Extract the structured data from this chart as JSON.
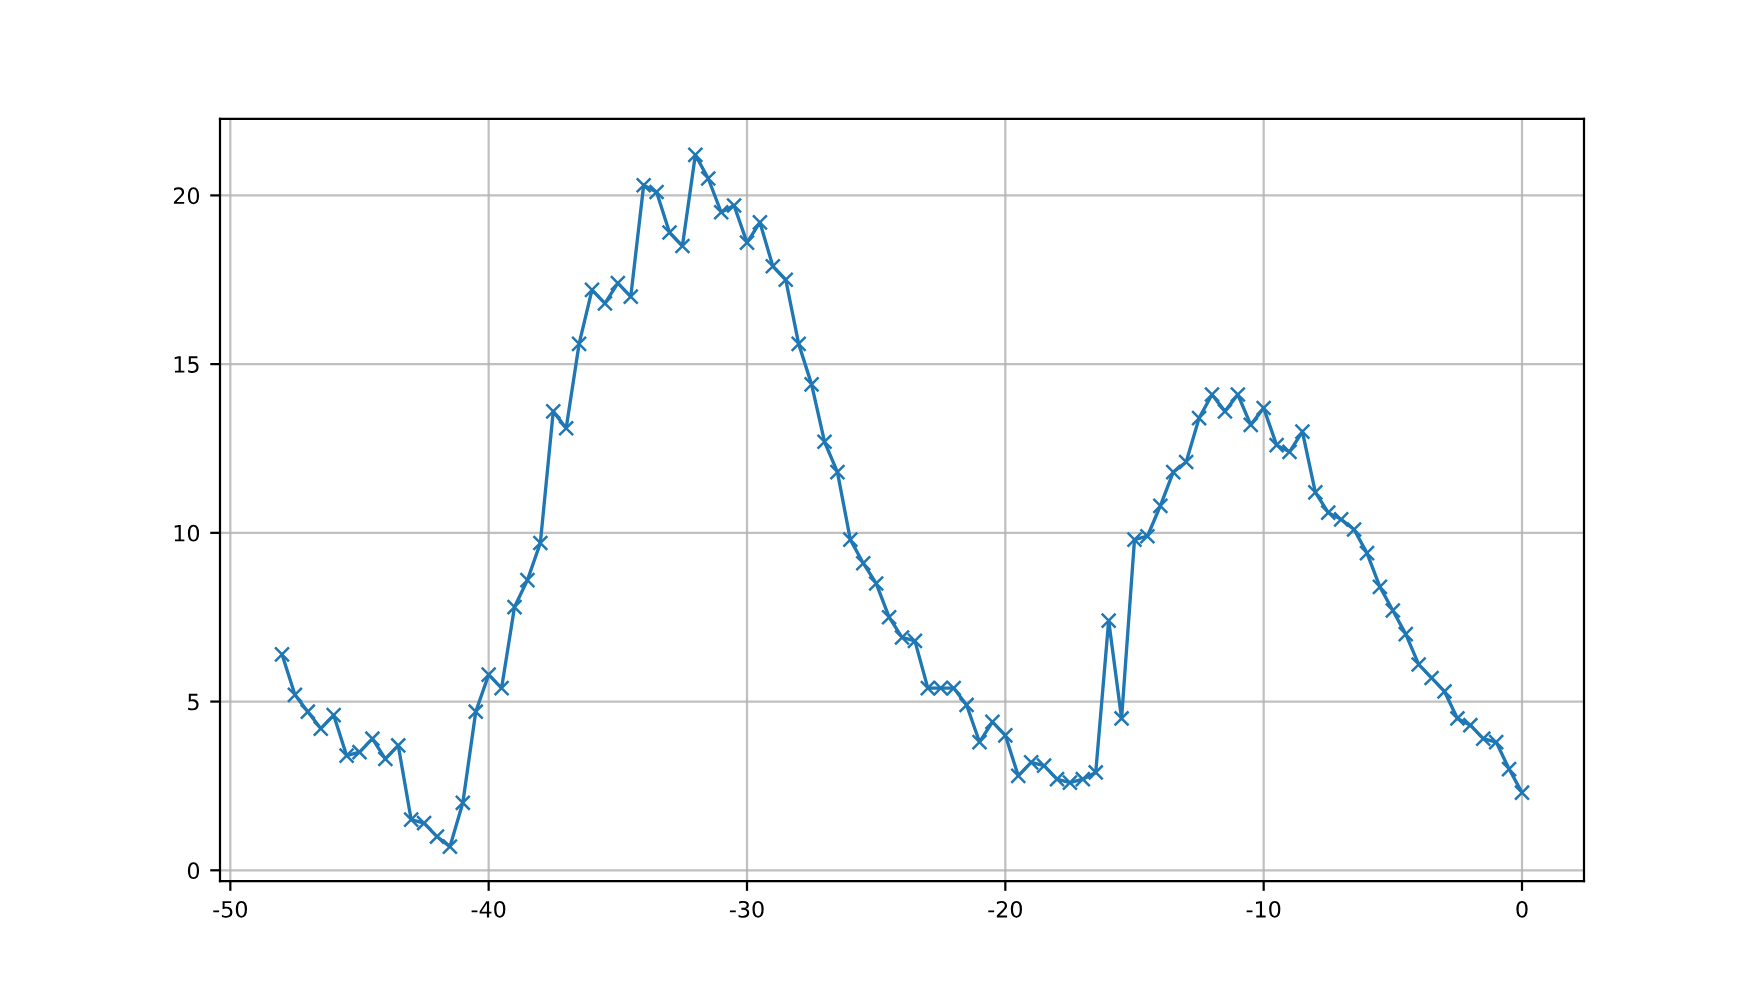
{
  "chart_data": {
    "type": "line",
    "x": [
      -48.0,
      -47.5,
      -47.0,
      -46.5,
      -46.0,
      -45.5,
      -45.0,
      -44.5,
      -44.0,
      -43.5,
      -43.0,
      -42.5,
      -42.0,
      -41.5,
      -41.0,
      -40.5,
      -40.0,
      -39.5,
      -39.0,
      -38.5,
      -38.0,
      -37.5,
      -37.0,
      -36.5,
      -36.0,
      -35.5,
      -35.0,
      -34.5,
      -34.0,
      -33.5,
      -33.0,
      -32.5,
      -32.0,
      -31.5,
      -31.0,
      -30.5,
      -30.0,
      -29.5,
      -29.0,
      -28.5,
      -28.0,
      -27.5,
      -27.0,
      -26.5,
      -26.0,
      -25.5,
      -25.0,
      -24.5,
      -24.0,
      -23.5,
      -23.0,
      -22.5,
      -22.0,
      -21.5,
      -21.0,
      -20.5,
      -20.0,
      -19.5,
      -19.0,
      -18.5,
      -18.0,
      -17.5,
      -17.0,
      -16.5,
      -16.0,
      -15.5,
      -15.0,
      -14.5,
      -14.0,
      -13.5,
      -13.0,
      -12.5,
      -12.0,
      -11.5,
      -11.0,
      -10.5,
      -10.0,
      -9.5,
      -9.0,
      -8.5,
      -8.0,
      -7.5,
      -7.0,
      -6.5,
      -6.0,
      -5.5,
      -5.0,
      -4.5,
      -4.0,
      -3.5,
      -3.0,
      -2.5,
      -2.0,
      -1.5,
      -1.0,
      -0.5,
      0.0
    ],
    "series": [
      {
        "color": "#1f77b4",
        "values": [
          6.4,
          5.2,
          4.7,
          4.2,
          4.6,
          3.4,
          3.5,
          3.9,
          3.3,
          3.7,
          1.5,
          1.4,
          1.0,
          0.7,
          2.0,
          4.7,
          5.8,
          5.4,
          7.8,
          8.6,
          9.7,
          13.6,
          13.1,
          15.6,
          17.2,
          16.8,
          17.4,
          17.0,
          20.3,
          20.1,
          18.9,
          18.5,
          21.2,
          20.5,
          19.5,
          19.7,
          18.6,
          19.2,
          17.9,
          17.5,
          15.6,
          14.4,
          12.7,
          11.8,
          9.8,
          9.1,
          8.5,
          7.5,
          6.9,
          6.8,
          5.4,
          5.4,
          5.4,
          4.9,
          3.8,
          4.4,
          4.0,
          2.8,
          3.2,
          3.1,
          2.7,
          2.6,
          2.7,
          2.9,
          7.4,
          4.5,
          9.8,
          9.9,
          10.8,
          11.8,
          12.1,
          13.4,
          14.1,
          13.6,
          14.1,
          13.2,
          13.7,
          12.6,
          12.4,
          13.0,
          11.2,
          10.6,
          10.4,
          10.1,
          9.4,
          8.4,
          7.7,
          7.0,
          6.1,
          5.7,
          5.3,
          4.5,
          4.3,
          3.9,
          3.8,
          3.0,
          2.3
        ]
      }
    ],
    "xlim": [
      -50.4,
      2.4
    ],
    "ylim": [
      -0.32,
      22.27
    ],
    "xticks": [
      -50,
      -40,
      -30,
      -20,
      -10,
      0
    ],
    "yticks": [
      0,
      5,
      10,
      15,
      20
    ],
    "grid": true,
    "marker": "cross",
    "line_style": "solid"
  }
}
